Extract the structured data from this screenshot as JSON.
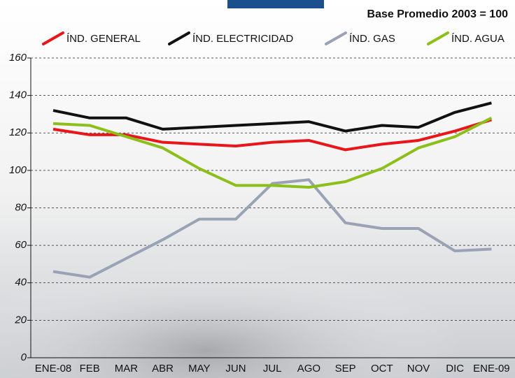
{
  "chart_data": {
    "type": "line",
    "subtitle": "Base Promedio 2003 = 100",
    "categories": [
      "ENE-08",
      "FEB",
      "MAR",
      "ABR",
      "MAY",
      "JUN",
      "JUL",
      "AGO",
      "SEP",
      "OCT",
      "NOV",
      "DIC",
      "ENE-09"
    ],
    "series": [
      {
        "name": "ÍND. GENERAL",
        "color": "#e8161b",
        "values": [
          122,
          119,
          119,
          115,
          114,
          113,
          115,
          116,
          111,
          114,
          116,
          121,
          127
        ]
      },
      {
        "name": "ÍND. ELECTRICIDAD",
        "color": "#111111",
        "values": [
          132,
          128,
          128,
          122,
          123,
          124,
          125,
          126,
          121,
          124,
          123,
          131,
          136
        ]
      },
      {
        "name": "ÍND. GAS",
        "color": "#9aa3b5",
        "values": [
          46,
          43,
          53,
          63,
          74,
          74,
          93,
          95,
          72,
          69,
          69,
          57,
          58
        ]
      },
      {
        "name": "ÍND. AGUA",
        "color": "#8cbf1a",
        "values": [
          125,
          124,
          118,
          112,
          101,
          92,
          92,
          91,
          94,
          101,
          112,
          118,
          128
        ]
      }
    ],
    "ylim": [
      0,
      160
    ],
    "yticks": [
      0,
      20,
      40,
      60,
      80,
      100,
      120,
      140,
      160
    ],
    "grid": true
  }
}
